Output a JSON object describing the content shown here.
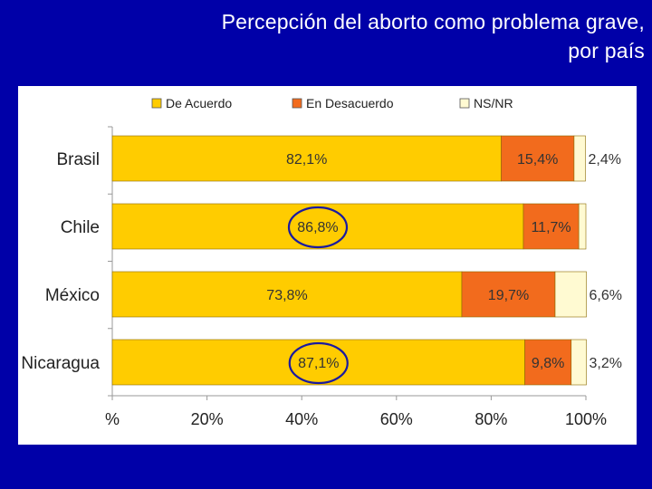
{
  "title": {
    "line1": "Percepción del aborto como problema grave,",
    "line2": "por país"
  },
  "chart_data": {
    "type": "bar",
    "orientation": "horizontal",
    "stacked": true,
    "title": "Percepción del aborto como problema grave, por país",
    "categories": [
      "Brasil",
      "Chile",
      "México",
      "Nicaragua"
    ],
    "series": [
      {
        "name": "De Acuerdo",
        "color": "#ffcc00",
        "values": [
          82.1,
          86.8,
          73.8,
          87.1
        ],
        "labels": [
          "82,1%",
          "86,8%",
          "73,8%",
          "87,1%"
        ]
      },
      {
        "name": "En Desacuerdo",
        "color": "#f26b1d",
        "values": [
          15.4,
          11.7,
          19.7,
          9.8
        ],
        "labels": [
          "15,4%",
          "11,7%",
          "19,7%",
          "9,8%"
        ]
      },
      {
        "name": "NS/NR",
        "color": "#fffad2",
        "values": [
          2.4,
          1.5,
          6.6,
          3.2
        ],
        "labels": [
          "2,4%",
          "",
          "6,6%",
          "3,2%"
        ]
      }
    ],
    "xlim": [
      0,
      100
    ],
    "xticks": [
      "%",
      "20%",
      "40%",
      "60%",
      "80%",
      "100%"
    ],
    "legend_position": "top",
    "highlighted_labels": [
      "86,8%",
      "87,1%"
    ],
    "highlight_color": "#1a1aa0"
  }
}
